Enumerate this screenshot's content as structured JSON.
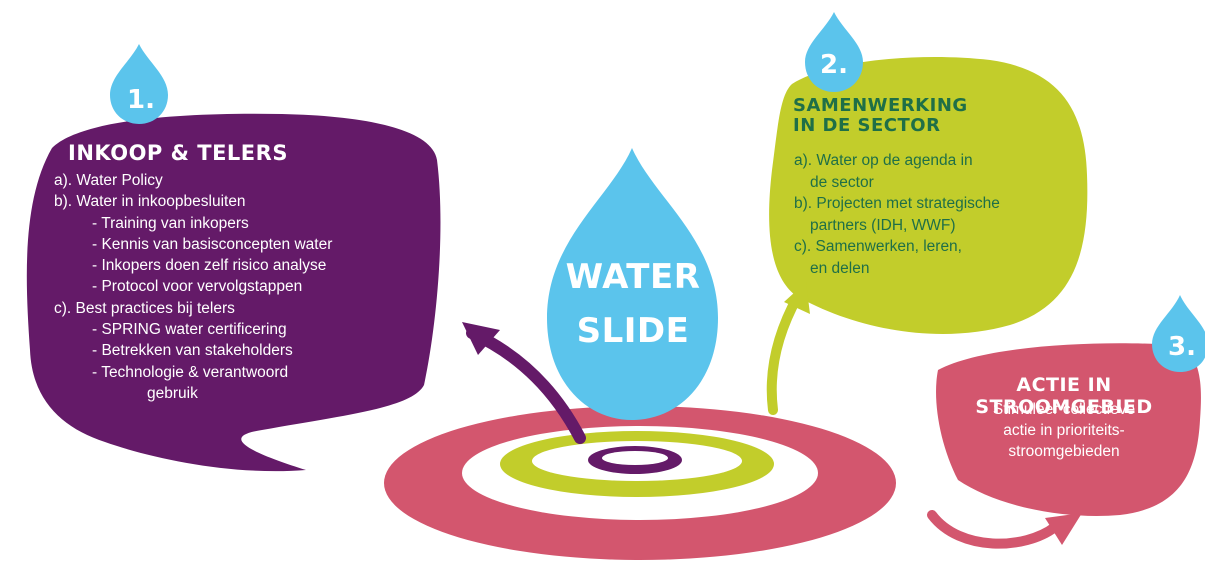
{
  "center": {
    "line1": "WATER",
    "line2": "SLIDE"
  },
  "box1": {
    "number": "1.",
    "title": "INKOOP & TELERS",
    "lines": [
      "a). Water Policy",
      "b). Water in inkoopbesluiten",
      "- Training van inkopers",
      "- Kennis van basisconcepten water",
      "- Inkopers doen zelf risico analyse",
      "- Protocol voor vervolgstappen",
      "c). Best practices bij telers",
      "- SPRING water certificering",
      "- Betrekken van stakeholders",
      "- Technologie & verantwoord",
      "gebruik"
    ]
  },
  "box2": {
    "number": "2.",
    "title_line1": "SAMENWERKING",
    "title_line2": "IN DE SECTOR",
    "lines": [
      "a). Water op de agenda in",
      "de sector",
      "b). Projecten met strategische",
      "partners (IDH, WWF)",
      "c). Samenwerken, leren,",
      "en delen"
    ]
  },
  "box3": {
    "number": "3.",
    "title": "ACTIE IN STROOMGEBIED",
    "lines": [
      "Stimuleer collectieve",
      "actie in prioriteits-",
      "stroomgebieden"
    ]
  },
  "colors": {
    "purple": "#641a68",
    "lime": "#c2cd2b",
    "pink": "#d3566e",
    "water_blue": "#5bc4ec",
    "dark_green": "#1f6f47"
  }
}
